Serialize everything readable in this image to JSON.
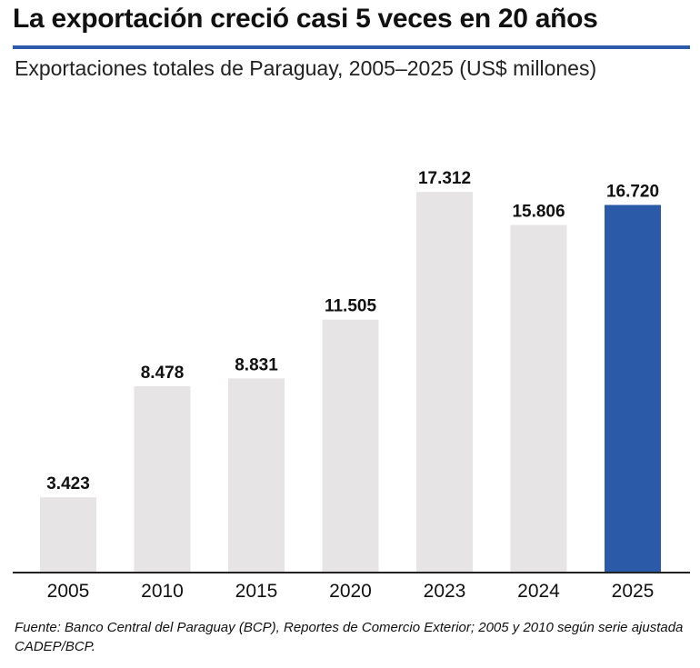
{
  "chart_data": {
    "type": "bar",
    "title": "La exportación creció casi 5 veces en 20 años",
    "subtitle": "Exportaciones totales de Paraguay, 2005–2025 (US$ millones)",
    "categories": [
      "2005",
      "2010",
      "2015",
      "2020",
      "2023",
      "2024",
      "2025"
    ],
    "values": [
      3423,
      8478,
      8831,
      11505,
      17312,
      15806,
      16720
    ],
    "value_labels": [
      "3.423",
      "8.478",
      "8.831",
      "11.505",
      "17.312",
      "15.806",
      "16.720"
    ],
    "ylim": [
      0,
      19800
    ],
    "grid": false,
    "legend": "none",
    "highlight_category": "2025",
    "colors": {
      "bar": "#e6e4e5",
      "highlight": "#2a5aa8",
      "axis": "#222222",
      "accent": "#2a5aa8"
    },
    "source": "Fuente: Banco Central del Paraguay (BCP), Reportes de Comercio Exterior; 2005 y 2010 según serie ajustada CADEP/BCP."
  }
}
